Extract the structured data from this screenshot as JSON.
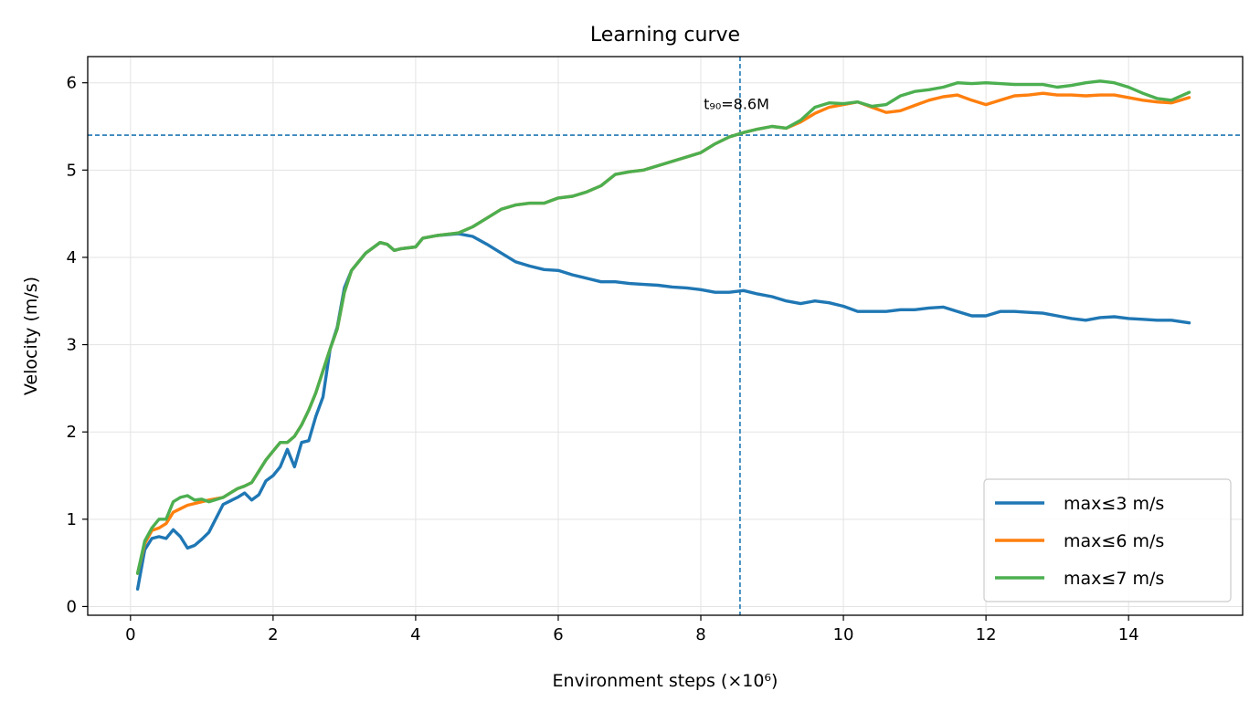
{
  "chart_data": {
    "type": "line",
    "title": "Learning curve",
    "xlabel": "Environment steps (×10⁶)",
    "ylabel": "Velocity (m/s)",
    "xlim": [
      -0.6,
      15.6
    ],
    "ylim": [
      -0.1,
      6.3
    ],
    "grid": true,
    "legend_position": "lower-right",
    "x_ticks": [
      0,
      2,
      4,
      6,
      8,
      10,
      12,
      14
    ],
    "y_ticks": [
      0,
      1,
      2,
      3,
      4,
      5,
      6
    ],
    "x_tick_labels": [
      "0",
      "2",
      "4",
      "6",
      "8",
      "10",
      "12",
      "14"
    ],
    "y_tick_labels": [
      "0",
      "1",
      "2",
      "3",
      "4",
      "5",
      "6"
    ],
    "annotations": {
      "hline_y": 5.4,
      "vline_x": 8.55,
      "vline_label": "t₉₀=8.6M",
      "vline_label_x": 8.5,
      "vline_label_y": 5.75
    },
    "series": [
      {
        "name": "max≤3 m/s",
        "color": "#1f77b4",
        "x": [
          0.1,
          0.2,
          0.3,
          0.4,
          0.5,
          0.6,
          0.7,
          0.8,
          0.9,
          1.0,
          1.1,
          1.3,
          1.5,
          1.6,
          1.7,
          1.8,
          1.9,
          2.0,
          2.1,
          2.2,
          2.3,
          2.4,
          2.5,
          2.6,
          2.7,
          2.8,
          2.9,
          3.0,
          3.1,
          3.3,
          3.5,
          3.6,
          3.7,
          3.8,
          4.0,
          4.1,
          4.3,
          4.6,
          4.8,
          5.0,
          5.2,
          5.4,
          5.6,
          5.8,
          6.0,
          6.2,
          6.4,
          6.6,
          6.8,
          7.0,
          7.2,
          7.4,
          7.6,
          7.8,
          8.0,
          8.2,
          8.4,
          8.6,
          8.8,
          9.0,
          9.2,
          9.4,
          9.6,
          9.8,
          10.0,
          10.2,
          10.4,
          10.6,
          10.8,
          11.0,
          11.2,
          11.4,
          11.6,
          11.8,
          12.0,
          12.2,
          12.4,
          12.6,
          12.8,
          13.0,
          13.2,
          13.4,
          13.6,
          13.8,
          14.0,
          14.2,
          14.4,
          14.6,
          14.85
        ],
        "y": [
          0.2,
          0.65,
          0.78,
          0.8,
          0.78,
          0.88,
          0.8,
          0.67,
          0.7,
          0.77,
          0.85,
          1.17,
          1.25,
          1.3,
          1.22,
          1.28,
          1.44,
          1.5,
          1.6,
          1.8,
          1.6,
          1.88,
          1.9,
          2.18,
          2.4,
          2.95,
          3.2,
          3.65,
          3.85,
          4.05,
          4.17,
          4.15,
          4.08,
          4.1,
          4.12,
          4.22,
          4.25,
          4.27,
          4.24,
          4.15,
          4.05,
          3.95,
          3.9,
          3.86,
          3.85,
          3.8,
          3.76,
          3.72,
          3.72,
          3.7,
          3.69,
          3.68,
          3.66,
          3.65,
          3.63,
          3.6,
          3.6,
          3.62,
          3.58,
          3.55,
          3.5,
          3.47,
          3.5,
          3.48,
          3.44,
          3.38,
          3.38,
          3.38,
          3.4,
          3.4,
          3.42,
          3.43,
          3.38,
          3.33,
          3.33,
          3.38,
          3.38,
          3.37,
          3.36,
          3.33,
          3.3,
          3.28,
          3.31,
          3.32,
          3.3,
          3.29,
          3.28,
          3.28,
          3.25
        ]
      },
      {
        "name": "max≤6 m/s",
        "color": "#ff7f0e",
        "x": [
          0.1,
          0.2,
          0.3,
          0.4,
          0.5,
          0.6,
          0.7,
          0.8,
          0.9,
          1.0,
          1.1,
          1.3,
          1.5,
          1.6,
          1.7,
          1.8,
          1.9,
          2.0,
          2.1,
          2.2,
          2.3,
          2.4,
          2.5,
          2.6,
          2.7,
          2.8,
          2.9,
          3.0,
          3.1,
          3.3,
          3.5,
          3.6,
          3.7,
          3.8,
          4.0,
          4.1,
          4.3,
          4.6,
          4.8,
          5.0,
          5.2,
          5.4,
          5.6,
          5.8,
          6.0,
          6.2,
          6.4,
          6.6,
          6.8,
          7.0,
          7.2,
          7.4,
          7.6,
          7.8,
          8.0,
          8.2,
          8.4,
          8.6,
          8.8,
          9.0,
          9.2,
          9.4,
          9.6,
          9.8,
          10.0,
          10.2,
          10.4,
          10.6,
          10.8,
          11.0,
          11.2,
          11.4,
          11.6,
          11.8,
          12.0,
          12.2,
          12.4,
          12.6,
          12.8,
          13.0,
          13.2,
          13.4,
          13.6,
          13.8,
          14.0,
          14.2,
          14.4,
          14.6,
          14.85
        ],
        "y": [
          0.38,
          0.72,
          0.87,
          0.9,
          0.95,
          1.08,
          1.12,
          1.16,
          1.18,
          1.2,
          1.22,
          1.25,
          1.35,
          1.38,
          1.42,
          1.55,
          1.68,
          1.78,
          1.88,
          1.88,
          1.95,
          2.08,
          2.25,
          2.45,
          2.7,
          2.95,
          3.18,
          3.6,
          3.85,
          4.05,
          4.17,
          4.15,
          4.08,
          4.1,
          4.12,
          4.22,
          4.25,
          4.28,
          4.35,
          4.45,
          4.55,
          4.6,
          4.62,
          4.62,
          4.68,
          4.7,
          4.75,
          4.82,
          4.95,
          4.98,
          5.0,
          5.05,
          5.1,
          5.15,
          5.2,
          5.3,
          5.38,
          5.43,
          5.47,
          5.5,
          5.48,
          5.55,
          5.65,
          5.72,
          5.75,
          5.78,
          5.72,
          5.66,
          5.68,
          5.74,
          5.8,
          5.84,
          5.86,
          5.8,
          5.75,
          5.8,
          5.85,
          5.86,
          5.88,
          5.86,
          5.86,
          5.85,
          5.86,
          5.86,
          5.83,
          5.8,
          5.78,
          5.77,
          5.83
        ]
      },
      {
        "name": "max≤7 m/s",
        "color": "#4caf50",
        "x": [
          0.1,
          0.2,
          0.3,
          0.4,
          0.5,
          0.6,
          0.7,
          0.8,
          0.9,
          1.0,
          1.1,
          1.3,
          1.5,
          1.6,
          1.7,
          1.8,
          1.9,
          2.0,
          2.1,
          2.2,
          2.3,
          2.4,
          2.5,
          2.6,
          2.7,
          2.8,
          2.9,
          3.0,
          3.1,
          3.3,
          3.5,
          3.6,
          3.7,
          3.8,
          4.0,
          4.1,
          4.3,
          4.6,
          4.8,
          5.0,
          5.2,
          5.4,
          5.6,
          5.8,
          6.0,
          6.2,
          6.4,
          6.6,
          6.8,
          7.0,
          7.2,
          7.4,
          7.6,
          7.8,
          8.0,
          8.2,
          8.4,
          8.6,
          8.8,
          9.0,
          9.2,
          9.4,
          9.6,
          9.8,
          10.0,
          10.2,
          10.4,
          10.6,
          10.8,
          11.0,
          11.2,
          11.4,
          11.6,
          11.8,
          12.0,
          12.2,
          12.4,
          12.6,
          12.8,
          13.0,
          13.2,
          13.4,
          13.6,
          13.8,
          14.0,
          14.2,
          14.4,
          14.6,
          14.85
        ],
        "y": [
          0.38,
          0.75,
          0.9,
          1.0,
          1.0,
          1.2,
          1.25,
          1.27,
          1.22,
          1.23,
          1.2,
          1.25,
          1.35,
          1.38,
          1.42,
          1.55,
          1.68,
          1.78,
          1.88,
          1.88,
          1.95,
          2.08,
          2.25,
          2.45,
          2.7,
          2.95,
          3.18,
          3.6,
          3.85,
          4.05,
          4.17,
          4.15,
          4.08,
          4.1,
          4.12,
          4.22,
          4.25,
          4.28,
          4.35,
          4.45,
          4.55,
          4.6,
          4.62,
          4.62,
          4.68,
          4.7,
          4.75,
          4.82,
          4.95,
          4.98,
          5.0,
          5.05,
          5.1,
          5.15,
          5.2,
          5.3,
          5.38,
          5.43,
          5.47,
          5.5,
          5.48,
          5.57,
          5.72,
          5.77,
          5.76,
          5.78,
          5.73,
          5.75,
          5.85,
          5.9,
          5.92,
          5.95,
          6.0,
          5.99,
          6.0,
          5.99,
          5.98,
          5.98,
          5.98,
          5.95,
          5.97,
          6.0,
          6.02,
          6.0,
          5.95,
          5.88,
          5.82,
          5.8,
          5.89
        ]
      }
    ]
  }
}
